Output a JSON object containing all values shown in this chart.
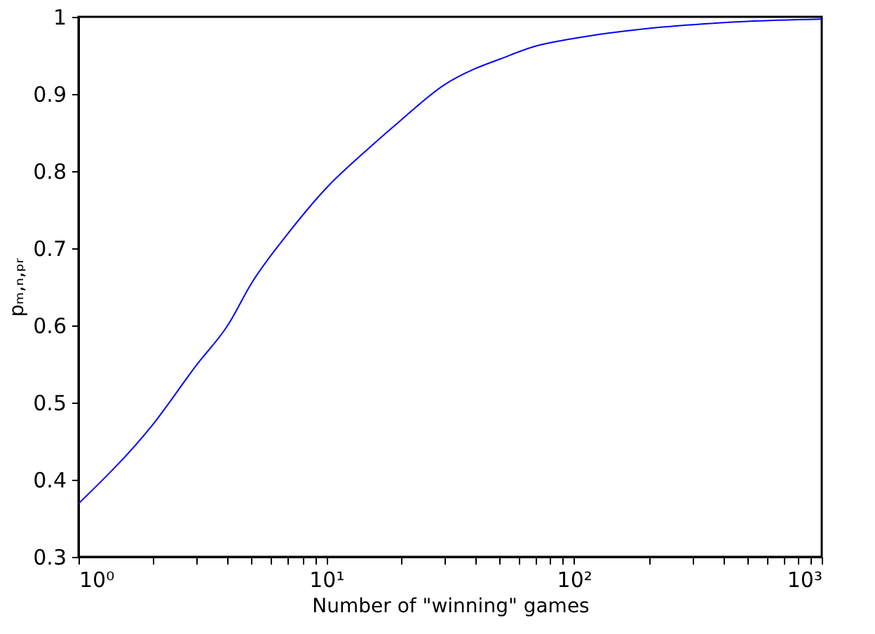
{
  "chart_data": {
    "type": "line",
    "xlabel": "Number of \"winning\" games",
    "ylabel": "pₘ,ₙ,ₚᵣ",
    "x": [
      1,
      2,
      3,
      4,
      5,
      7,
      10,
      15,
      20,
      30,
      40,
      50,
      70,
      100,
      200,
      500,
      1000
    ],
    "series": [
      {
        "color": "#0000ff",
        "values": [
          0.369,
          0.472,
          0.549,
          0.6,
          0.655,
          0.719,
          0.778,
          0.831,
          0.866,
          0.912,
          0.933,
          0.945,
          0.962,
          0.972,
          0.985,
          0.994,
          0.997
        ]
      }
    ],
    "log": "x",
    "xlim": [
      1,
      1000
    ],
    "ylim": [
      0.3,
      1
    ],
    "xticks": [
      {
        "value": 1,
        "label": "10⁰"
      },
      {
        "value": 2,
        "label": null
      },
      {
        "value": 3,
        "label": null
      },
      {
        "value": 4,
        "label": null
      },
      {
        "value": 5,
        "label": null
      },
      {
        "value": 6,
        "label": null
      },
      {
        "value": 7,
        "label": null
      },
      {
        "value": 8,
        "label": null
      },
      {
        "value": 9,
        "label": null
      },
      {
        "value": 10,
        "label": "10¹"
      },
      {
        "value": 20,
        "label": null
      },
      {
        "value": 30,
        "label": null
      },
      {
        "value": 40,
        "label": null
      },
      {
        "value": 50,
        "label": null
      },
      {
        "value": 60,
        "label": null
      },
      {
        "value": 70,
        "label": null
      },
      {
        "value": 80,
        "label": null
      },
      {
        "value": 90,
        "label": null
      },
      {
        "value": 100,
        "label": "10²"
      },
      {
        "value": 200,
        "label": null
      },
      {
        "value": 300,
        "label": null
      },
      {
        "value": 400,
        "label": null
      },
      {
        "value": 500,
        "label": null
      },
      {
        "value": 600,
        "label": null
      },
      {
        "value": 700,
        "label": null
      },
      {
        "value": 800,
        "label": null
      },
      {
        "value": 900,
        "label": null
      },
      {
        "value": 1000,
        "label": "10³"
      }
    ],
    "yticks": [
      0.3,
      0.4,
      0.5,
      0.6,
      0.7,
      0.8,
      0.9,
      1
    ],
    "grid": false,
    "marker": "none",
    "line_style": "solid"
  }
}
